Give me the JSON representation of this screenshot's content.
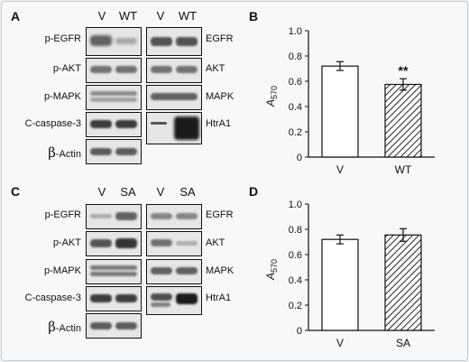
{
  "colors": {
    "band": "#2b2b2b",
    "blot_bg": "#e6e6e6",
    "bar_fill": "#ffffff",
    "hatch": "#222222"
  },
  "panels": {
    "A": {
      "label": "A",
      "lane_labels_left": [
        "V",
        "WT"
      ],
      "lane_labels_right": [
        "V",
        "WT"
      ],
      "left_rows": [
        "p-EGFR",
        "p-AKT",
        "p-MAPK",
        "C-caspase-3",
        "-Actin"
      ],
      "right_rows": [
        "EGFR",
        "AKT",
        "MAPK",
        "HtrA1"
      ]
    },
    "C": {
      "label": "C",
      "lane_labels_left": [
        "V",
        "SA"
      ],
      "lane_labels_right": [
        "V",
        "SA"
      ],
      "left_rows": [
        "p-EGFR",
        "p-AKT",
        "p-MAPK",
        "C-caspase-3",
        "-Actin"
      ],
      "right_rows": [
        "EGFR",
        "AKT",
        "MAPK",
        "HtrA1"
      ]
    },
    "beta_symbol": "β",
    "B": {
      "label": "B"
    },
    "D": {
      "label": "D"
    }
  },
  "chart_data": [
    {
      "panel": "B",
      "type": "bar",
      "categories": [
        "V",
        "WT"
      ],
      "values": [
        0.72,
        0.575
      ],
      "errors": [
        0.035,
        0.045
      ],
      "patterns": [
        "open",
        "hatched"
      ],
      "significance": [
        "",
        "**"
      ],
      "ylabel_main": "A",
      "ylabel_sub": "570",
      "ylim": [
        0,
        1.0
      ],
      "yticks": [
        "0",
        "0.2",
        "0.4",
        "0.6",
        "0.8",
        "1.0"
      ]
    },
    {
      "panel": "D",
      "type": "bar",
      "categories": [
        "V",
        "SA"
      ],
      "values": [
        0.72,
        0.755
      ],
      "errors": [
        0.035,
        0.05
      ],
      "patterns": [
        "open",
        "hatched"
      ],
      "significance": [
        "",
        ""
      ],
      "ylabel_main": "A",
      "ylabel_sub": "570",
      "ylim": [
        0,
        1.0
      ],
      "yticks": [
        "0",
        "0.2",
        "0.4",
        "0.6",
        "0.8",
        "1.0"
      ]
    }
  ]
}
